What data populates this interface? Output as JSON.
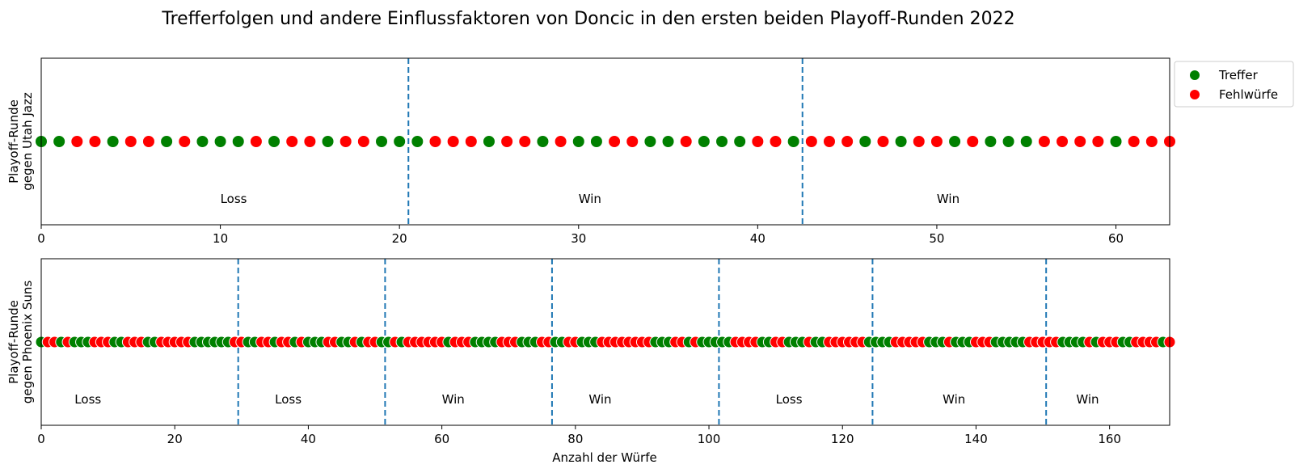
{
  "title": "Trefferfolgen und andere Einflussfaktoren von Doncic in den ersten beiden Playoff-Runden 2022",
  "legend": {
    "location": "upper right, outside",
    "entries": [
      {
        "label": "Treffer",
        "color": "#008000"
      },
      {
        "label": "Fehlwürfe",
        "color": "#ff0000"
      }
    ]
  },
  "xlabel": "Anzahl der Würfe",
  "chart_data": [
    {
      "type": "scatter",
      "ylabel_lines": [
        "Playoff-Runde",
        "gegen Utah Jazz"
      ],
      "xlim": [
        0,
        63
      ],
      "xticks": [
        0,
        10,
        20,
        30,
        40,
        50,
        60
      ],
      "shots": "GGRRGRRGRGGGRGRRGRRGGGRRRGRRGRGGRRGGRGGGRRGRRRGRGRRGRGGGRRRRGRRR",
      "separators": [
        20.5,
        42.5
      ],
      "games": [
        {
          "x": 10,
          "result": "Loss"
        },
        {
          "x": 30,
          "result": "Win"
        },
        {
          "x": 50,
          "result": "Win"
        }
      ]
    },
    {
      "type": "scatter",
      "ylabel_lines": [
        "Playoff-Runde",
        "gegen Phoenix Suns"
      ],
      "xlim": [
        0,
        169
      ],
      "xticks": [
        0,
        20,
        40,
        60,
        80,
        100,
        120,
        140,
        160
      ],
      "shots": "GRRGRGGGRRRGGRRRGGRRRRRGGGGGGRRGGRRGRRGRGGGRRGGRGRRGGRGRRRRRRGRRRGGGGRRRGGGRRGGRRGGGRRRRRRRRGGGRRGRGGGGGRRRRGGRRGGGRGGRRRRRRGGGGRRRRRGGGRGGGRRRGGGGGRRRRRGGGGRGRRRGGRRRRGR",
      "separators": [
        29.5,
        51.5,
        76.5,
        101.5,
        124.5,
        150.5
      ],
      "games": [
        {
          "x": 5,
          "result": "Loss"
        },
        {
          "x": 35,
          "result": "Loss"
        },
        {
          "x": 60,
          "result": "Win"
        },
        {
          "x": 82,
          "result": "Win"
        },
        {
          "x": 110,
          "result": "Loss"
        },
        {
          "x": 135,
          "result": "Win"
        },
        {
          "x": 155,
          "result": "Win"
        }
      ]
    }
  ]
}
